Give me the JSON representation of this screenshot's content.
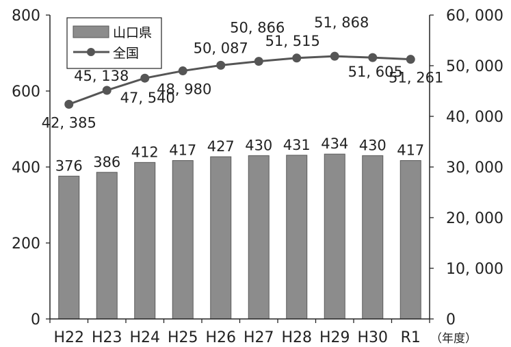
{
  "chart_data": {
    "type": "bar+line",
    "categories": [
      "H22",
      "H23",
      "H24",
      "H25",
      "H26",
      "H27",
      "H28",
      "H29",
      "H30",
      "R1"
    ],
    "series": [
      {
        "name": "山口県",
        "type": "bar",
        "axis": "left",
        "values": [
          376,
          386,
          412,
          417,
          427,
          430,
          431,
          434,
          430,
          417
        ],
        "labels": [
          "376",
          "386",
          "412",
          "417",
          "427",
          "430",
          "431",
          "434",
          "430",
          "417"
        ],
        "color": "#8c8c8c"
      },
      {
        "name": "全国",
        "type": "line",
        "axis": "right",
        "values": [
          42385,
          45138,
          47540,
          48980,
          50087,
          50866,
          51515,
          51868,
          51605,
          51261
        ],
        "labels": [
          "42, 385",
          "45, 138",
          "47, 540",
          "48, 980",
          "50, 087",
          "50, 866",
          "51, 515",
          "51, 868",
          "51, 605",
          "51, 261"
        ],
        "color": "#555555"
      }
    ],
    "left_axis": {
      "ylim": [
        0,
        800
      ],
      "ticks": [
        0,
        200,
        400,
        600,
        800
      ],
      "tick_labels": [
        "0",
        "200",
        "400",
        "600",
        "800"
      ]
    },
    "right_axis": {
      "ylim": [
        0,
        60000
      ],
      "ticks": [
        0,
        10000,
        20000,
        30000,
        40000,
        50000,
        60000
      ],
      "tick_labels": [
        "0",
        "10, 000",
        "20, 000",
        "30, 000",
        "40, 000",
        "50, 000",
        "60, 000"
      ]
    },
    "x_unit_label": "（年度）",
    "legend": {
      "position": "top-left",
      "items": [
        "山口県",
        "全国"
      ]
    },
    "grid": false
  }
}
